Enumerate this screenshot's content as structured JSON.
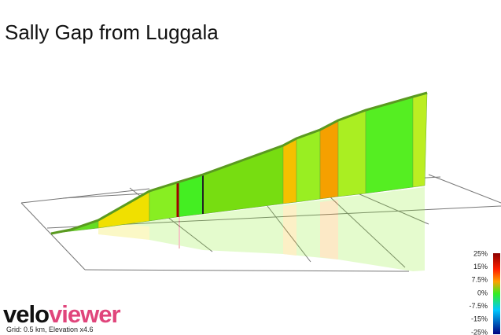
{
  "title": "Sally Gap from Luggala",
  "legend": {
    "labels": [
      "25%",
      "15%",
      "7.5%",
      "0%",
      "-7.5%",
      "-15%",
      "-25%"
    ]
  },
  "logo": {
    "velo": "velo",
    "viewer": "viewer"
  },
  "caption": "Grid: 0.5 km, Elevation x4.6"
}
